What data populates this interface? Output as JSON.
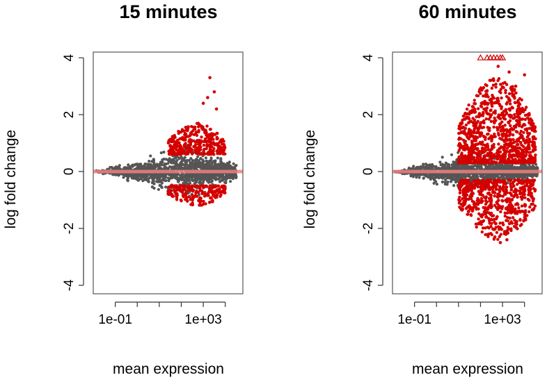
{
  "chart_data": [
    {
      "type": "scatter",
      "title": "15 minutes",
      "xlabel": "mean expression",
      "ylabel": "log fold change",
      "x_scale": "log10",
      "xlim": [
        -2.0,
        4.8
      ],
      "ylim": [
        -4.3,
        4.2
      ],
      "x_ticks": [
        -1,
        0,
        1,
        2,
        3,
        4
      ],
      "x_tick_labels": [
        {
          "x": -1,
          "label": "1e-01"
        },
        {
          "x": 3,
          "label": "1e+03"
        }
      ],
      "y_ticks": [
        4,
        2,
        0,
        -2,
        -4
      ],
      "reference_line": {
        "y": 0,
        "color": "#f08080"
      },
      "colors": {
        "not_significant": "#555555",
        "significant": "#d40000"
      },
      "cloud": {
        "x_min": -1.9,
        "x_max": 4.5,
        "peak_spread": 0.9,
        "peak_x": 2.4
      },
      "significant": {
        "x_min": 1.4,
        "x_max": 4.0,
        "y_pos_min": 0.6,
        "y_pos_max": 1.7,
        "y_neg_min": -0.5,
        "y_neg_max": -1.2,
        "density": 0.35
      },
      "outliers": [
        [
          3.3,
          3.3
        ],
        [
          3.5,
          2.8
        ],
        [
          3.2,
          2.6
        ],
        [
          3.6,
          2.2
        ],
        [
          3.0,
          2.4
        ]
      ],
      "capped_points": []
    },
    {
      "type": "scatter",
      "title": "60 minutes",
      "xlabel": "mean expression",
      "ylabel": "log fold change",
      "x_scale": "log10",
      "xlim": [
        -2.0,
        4.8
      ],
      "ylim": [
        -4.3,
        4.2
      ],
      "x_ticks": [
        -1,
        0,
        1,
        2,
        3,
        4
      ],
      "x_tick_labels": [
        {
          "x": -1,
          "label": "1e-01"
        },
        {
          "x": 3,
          "label": "1e+03"
        }
      ],
      "y_ticks": [
        4,
        2,
        0,
        -2,
        -4
      ],
      "reference_line": {
        "y": 0,
        "color": "#f08080"
      },
      "colors": {
        "not_significant": "#555555",
        "significant": "#d40000"
      },
      "cloud": {
        "x_min": -1.9,
        "x_max": 4.6,
        "peak_spread": 0.75,
        "peak_x": 1.5
      },
      "significant": {
        "x_min": 1.0,
        "x_max": 4.5,
        "y_pos_min": 0.3,
        "y_pos_max": 3.3,
        "y_neg_min": -0.3,
        "y_neg_max": -2.4,
        "density": 1.0
      },
      "outliers": [
        [
          2.8,
          3.7
        ],
        [
          3.3,
          3.5
        ],
        [
          4.0,
          3.4
        ],
        [
          2.6,
          3.2
        ],
        [
          3.6,
          3.0
        ],
        [
          2.9,
          -2.5
        ],
        [
          3.2,
          -2.4
        ]
      ],
      "capped_points": [
        [
          2.0,
          4.0
        ],
        [
          2.3,
          4.0
        ],
        [
          2.45,
          4.0
        ],
        [
          2.6,
          4.0
        ],
        [
          2.75,
          4.0
        ],
        [
          2.9,
          4.0
        ],
        [
          3.0,
          4.0
        ]
      ]
    }
  ]
}
